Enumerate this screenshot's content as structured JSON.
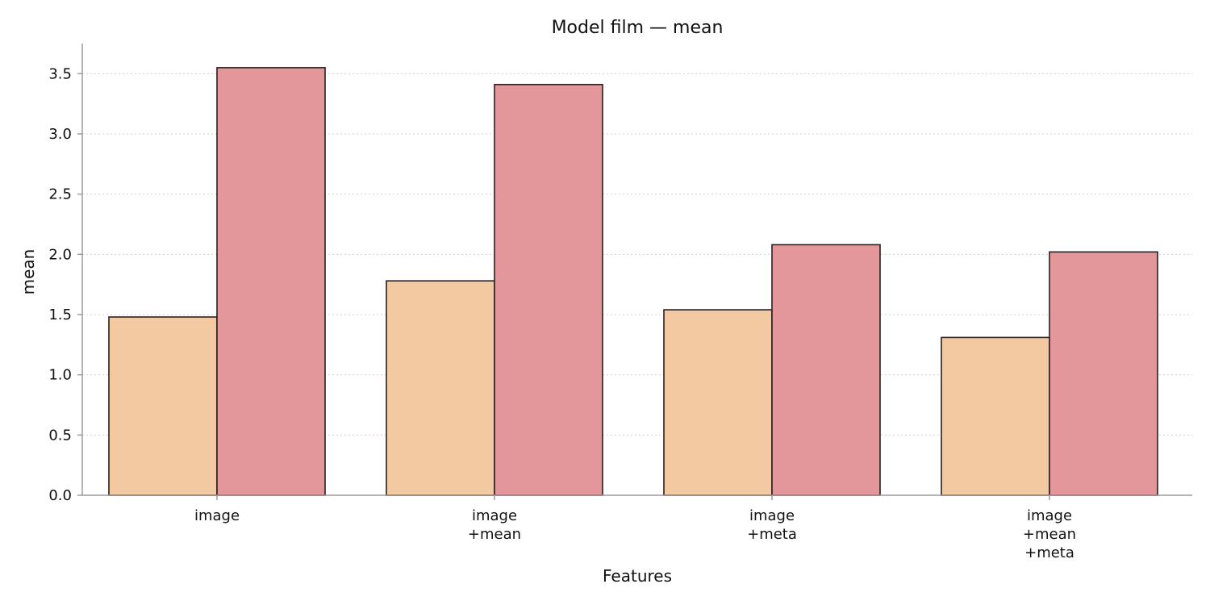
{
  "chart_data": {
    "type": "bar",
    "title": "Model film — mean",
    "xlabel": "Features",
    "ylabel": "mean",
    "categories": [
      [
        "image"
      ],
      [
        "image",
        "+mean"
      ],
      [
        "image",
        "+meta"
      ],
      [
        "image",
        "+mean",
        "+meta"
      ]
    ],
    "series": [
      {
        "color": "#f2c9a0",
        "values": [
          1.48,
          1.78,
          1.54,
          1.31
        ]
      },
      {
        "color": "#e3979a",
        "values": [
          3.55,
          3.41,
          2.08,
          2.02
        ]
      }
    ],
    "ylim": [
      0,
      3.75
    ],
    "yticks": [
      "0.0",
      "0.5",
      "1.0",
      "1.5",
      "2.0",
      "2.5",
      "3.0",
      "3.5"
    ],
    "grid": "horizontal dotted",
    "legend": "none"
  }
}
